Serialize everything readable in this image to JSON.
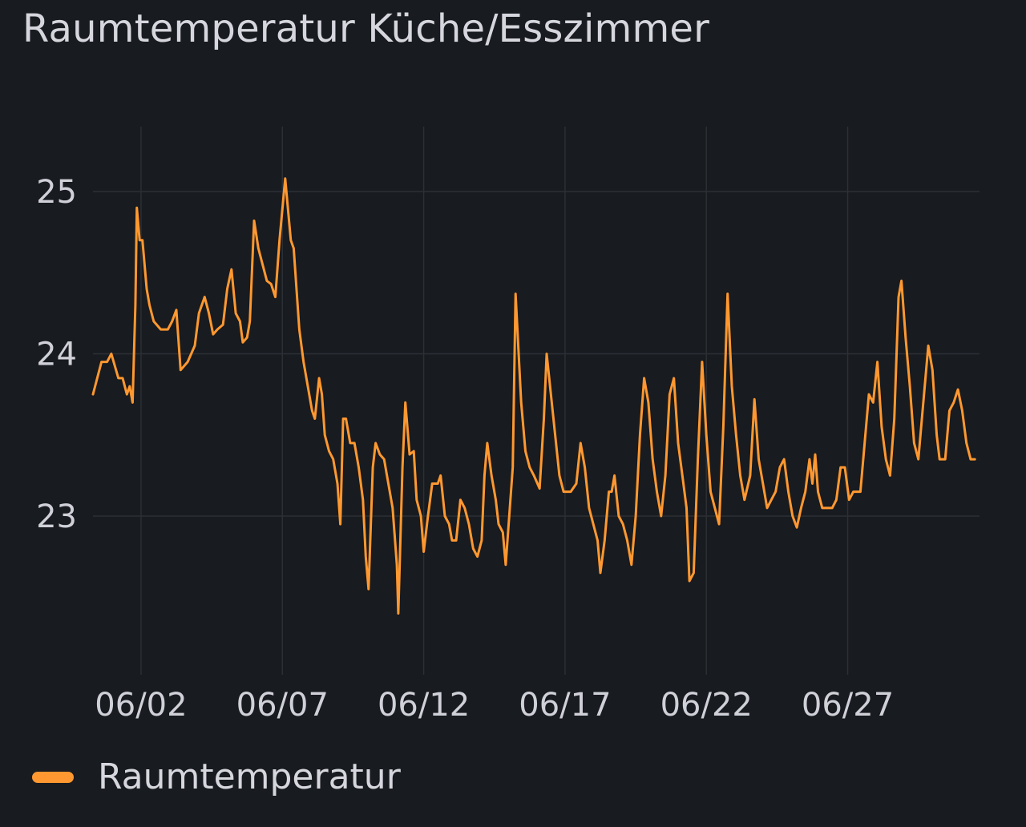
{
  "panel": {
    "title": "Raumtemperatur Küche/Esszimmer"
  },
  "chart_data": {
    "type": "line",
    "title": "Raumtemperatur Küche/Esszimmer",
    "xlabel": "",
    "ylabel": "",
    "x_domain": [
      "2024-06-01T00:00",
      "2024-07-01T00:00"
    ],
    "ylim": [
      22,
      25.5
    ],
    "y_ticks": [
      23,
      24,
      25
    ],
    "x_ticks": [
      {
        "label": "06/02",
        "day": 1.7
      },
      {
        "label": "06/07",
        "day": 6.7
      },
      {
        "label": "06/12",
        "day": 11.7
      },
      {
        "label": "06/17",
        "day": 16.7
      },
      {
        "label": "06/22",
        "day": 21.7
      },
      {
        "label": "06/27",
        "day": 26.7
      }
    ],
    "grid": true,
    "legend_position": "bottom-left",
    "series": [
      {
        "name": "Raumtemperatur",
        "color": "#ff9830",
        "points": [
          [
            0.0,
            23.75
          ],
          [
            0.3,
            23.95
          ],
          [
            0.5,
            23.95
          ],
          [
            0.65,
            24.0
          ],
          [
            0.9,
            23.85
          ],
          [
            1.05,
            23.85
          ],
          [
            1.2,
            23.75
          ],
          [
            1.3,
            23.8
          ],
          [
            1.4,
            23.7
          ],
          [
            1.5,
            24.3
          ],
          [
            1.55,
            24.9
          ],
          [
            1.65,
            24.7
          ],
          [
            1.75,
            24.7
          ],
          [
            1.9,
            24.4
          ],
          [
            2.0,
            24.3
          ],
          [
            2.15,
            24.2
          ],
          [
            2.4,
            24.15
          ],
          [
            2.65,
            24.15
          ],
          [
            2.8,
            24.2
          ],
          [
            2.95,
            24.27
          ],
          [
            3.1,
            23.9
          ],
          [
            3.35,
            23.95
          ],
          [
            3.6,
            24.05
          ],
          [
            3.75,
            24.25
          ],
          [
            3.95,
            24.35
          ],
          [
            4.1,
            24.25
          ],
          [
            4.25,
            24.12
          ],
          [
            4.4,
            24.15
          ],
          [
            4.6,
            24.18
          ],
          [
            4.75,
            24.4
          ],
          [
            4.9,
            24.52
          ],
          [
            5.05,
            24.25
          ],
          [
            5.2,
            24.2
          ],
          [
            5.3,
            24.07
          ],
          [
            5.45,
            24.1
          ],
          [
            5.55,
            24.2
          ],
          [
            5.7,
            24.82
          ],
          [
            5.85,
            24.65
          ],
          [
            6.0,
            24.55
          ],
          [
            6.15,
            24.45
          ],
          [
            6.3,
            24.43
          ],
          [
            6.45,
            24.35
          ],
          [
            6.6,
            24.7
          ],
          [
            6.8,
            25.08
          ],
          [
            7.0,
            24.7
          ],
          [
            7.1,
            24.65
          ],
          [
            7.3,
            24.15
          ],
          [
            7.45,
            23.95
          ],
          [
            7.6,
            23.8
          ],
          [
            7.75,
            23.65
          ],
          [
            7.85,
            23.6
          ],
          [
            8.0,
            23.85
          ],
          [
            8.1,
            23.75
          ],
          [
            8.2,
            23.5
          ],
          [
            8.35,
            23.4
          ],
          [
            8.5,
            23.35
          ],
          [
            8.65,
            23.2
          ],
          [
            8.75,
            22.95
          ],
          [
            8.85,
            23.6
          ],
          [
            8.95,
            23.6
          ],
          [
            9.1,
            23.45
          ],
          [
            9.25,
            23.45
          ],
          [
            9.4,
            23.3
          ],
          [
            9.55,
            23.1
          ],
          [
            9.65,
            22.75
          ],
          [
            9.75,
            22.55
          ],
          [
            9.9,
            23.3
          ],
          [
            10.0,
            23.45
          ],
          [
            10.15,
            23.38
          ],
          [
            10.3,
            23.35
          ],
          [
            10.45,
            23.2
          ],
          [
            10.6,
            23.05
          ],
          [
            10.75,
            22.7
          ],
          [
            10.8,
            22.4
          ],
          [
            10.95,
            23.3
          ],
          [
            11.05,
            23.7
          ],
          [
            11.2,
            23.38
          ],
          [
            11.35,
            23.4
          ],
          [
            11.45,
            23.1
          ],
          [
            11.6,
            23.0
          ],
          [
            11.7,
            22.78
          ],
          [
            11.85,
            23.0
          ],
          [
            12.0,
            23.2
          ],
          [
            12.2,
            23.2
          ],
          [
            12.3,
            23.25
          ],
          [
            12.45,
            23.0
          ],
          [
            12.6,
            22.95
          ],
          [
            12.7,
            22.85
          ],
          [
            12.85,
            22.85
          ],
          [
            13.0,
            23.1
          ],
          [
            13.15,
            23.05
          ],
          [
            13.3,
            22.95
          ],
          [
            13.45,
            22.8
          ],
          [
            13.6,
            22.75
          ],
          [
            13.75,
            22.85
          ],
          [
            13.85,
            23.25
          ],
          [
            13.95,
            23.45
          ],
          [
            14.1,
            23.25
          ],
          [
            14.25,
            23.1
          ],
          [
            14.35,
            22.95
          ],
          [
            14.5,
            22.9
          ],
          [
            14.6,
            22.7
          ],
          [
            14.85,
            23.3
          ],
          [
            14.95,
            24.37
          ],
          [
            15.15,
            23.7
          ],
          [
            15.3,
            23.4
          ],
          [
            15.45,
            23.3
          ],
          [
            15.6,
            23.25
          ],
          [
            15.8,
            23.17
          ],
          [
            15.95,
            23.6
          ],
          [
            16.05,
            24.0
          ],
          [
            16.2,
            23.75
          ],
          [
            16.35,
            23.5
          ],
          [
            16.5,
            23.25
          ],
          [
            16.65,
            23.15
          ],
          [
            16.9,
            23.15
          ],
          [
            17.1,
            23.2
          ],
          [
            17.25,
            23.45
          ],
          [
            17.4,
            23.3
          ],
          [
            17.55,
            23.05
          ],
          [
            17.7,
            22.95
          ],
          [
            17.85,
            22.85
          ],
          [
            17.95,
            22.65
          ],
          [
            18.1,
            22.85
          ],
          [
            18.25,
            23.15
          ],
          [
            18.35,
            23.15
          ],
          [
            18.45,
            23.25
          ],
          [
            18.6,
            23.0
          ],
          [
            18.75,
            22.95
          ],
          [
            18.9,
            22.85
          ],
          [
            19.05,
            22.7
          ],
          [
            19.2,
            23.0
          ],
          [
            19.35,
            23.5
          ],
          [
            19.5,
            23.85
          ],
          [
            19.65,
            23.7
          ],
          [
            19.8,
            23.35
          ],
          [
            19.95,
            23.15
          ],
          [
            20.1,
            23.0
          ],
          [
            20.25,
            23.25
          ],
          [
            20.4,
            23.75
          ],
          [
            20.55,
            23.85
          ],
          [
            20.7,
            23.45
          ],
          [
            20.85,
            23.25
          ],
          [
            21.0,
            23.05
          ],
          [
            21.1,
            22.6
          ],
          [
            21.25,
            22.65
          ],
          [
            21.4,
            23.35
          ],
          [
            21.55,
            23.95
          ],
          [
            21.7,
            23.5
          ],
          [
            21.85,
            23.15
          ],
          [
            22.0,
            23.05
          ],
          [
            22.15,
            22.95
          ],
          [
            22.3,
            23.55
          ],
          [
            22.45,
            24.37
          ],
          [
            22.6,
            23.8
          ],
          [
            22.75,
            23.5
          ],
          [
            22.9,
            23.25
          ],
          [
            23.05,
            23.1
          ],
          [
            23.25,
            23.25
          ],
          [
            23.4,
            23.72
          ],
          [
            23.55,
            23.35
          ],
          [
            23.7,
            23.2
          ],
          [
            23.85,
            23.05
          ],
          [
            24.0,
            23.1
          ],
          [
            24.15,
            23.15
          ],
          [
            24.3,
            23.3
          ],
          [
            24.45,
            23.35
          ],
          [
            24.6,
            23.15
          ],
          [
            24.75,
            23.0
          ],
          [
            24.9,
            22.93
          ],
          [
            25.05,
            23.05
          ],
          [
            25.2,
            23.15
          ],
          [
            25.35,
            23.35
          ],
          [
            25.45,
            23.2
          ],
          [
            25.55,
            23.38
          ],
          [
            25.65,
            23.15
          ],
          [
            25.8,
            23.05
          ],
          [
            26.15,
            23.05
          ],
          [
            26.3,
            23.1
          ],
          [
            26.45,
            23.3
          ],
          [
            26.6,
            23.3
          ],
          [
            26.75,
            23.1
          ],
          [
            26.9,
            23.15
          ],
          [
            27.15,
            23.15
          ],
          [
            27.3,
            23.45
          ],
          [
            27.45,
            23.75
          ],
          [
            27.6,
            23.7
          ],
          [
            27.75,
            23.95
          ],
          [
            27.9,
            23.55
          ],
          [
            28.05,
            23.35
          ],
          [
            28.2,
            23.25
          ],
          [
            28.35,
            23.6
          ],
          [
            28.5,
            24.35
          ],
          [
            28.6,
            24.45
          ],
          [
            28.75,
            24.1
          ],
          [
            28.9,
            23.8
          ],
          [
            29.05,
            23.45
          ],
          [
            29.2,
            23.35
          ],
          [
            29.35,
            23.65
          ],
          [
            29.55,
            24.05
          ],
          [
            29.7,
            23.9
          ],
          [
            29.85,
            23.5
          ],
          [
            29.95,
            23.35
          ],
          [
            30.15,
            23.35
          ],
          [
            30.3,
            23.65
          ],
          [
            30.45,
            23.7
          ],
          [
            30.6,
            23.78
          ],
          [
            30.75,
            23.65
          ],
          [
            30.9,
            23.45
          ],
          [
            31.05,
            23.35
          ],
          [
            31.2,
            23.35
          ]
        ]
      }
    ]
  }
}
